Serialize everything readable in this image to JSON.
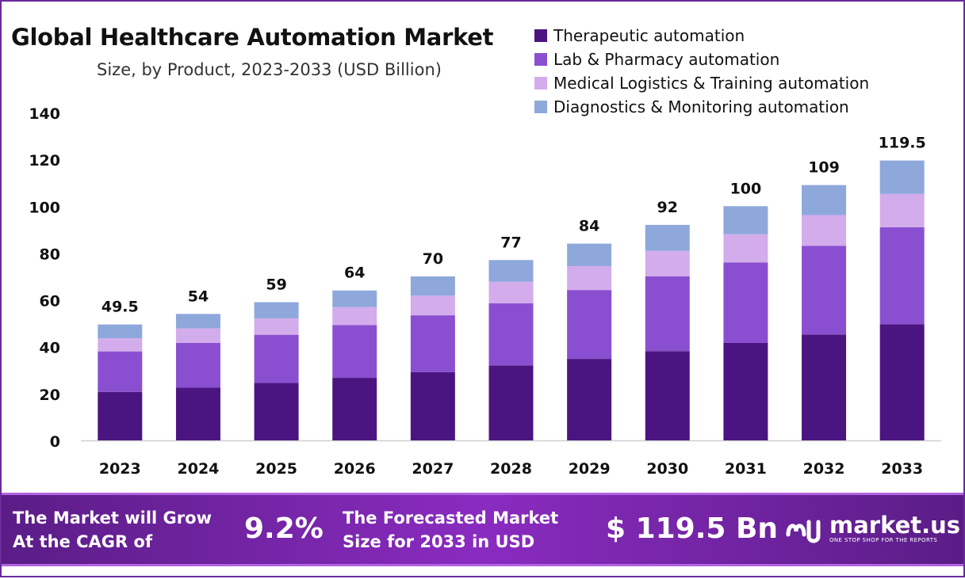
{
  "title": "Global Healthcare Automation Market",
  "subtitle": "Size, by Product, 2023-2033 (USD Billion)",
  "chart_data": {
    "type": "bar",
    "stacked": true,
    "categories": [
      "2023",
      "2024",
      "2025",
      "2026",
      "2027",
      "2028",
      "2029",
      "2030",
      "2031",
      "2032",
      "2033"
    ],
    "series": [
      {
        "name": "Therapeutic automation",
        "color": "#4a1580",
        "values": [
          20.7,
          22.5,
          24.5,
          26.7,
          29.1,
          32.0,
          34.8,
          38.1,
          41.6,
          45.2,
          49.6
        ]
      },
      {
        "name": "Lab & Pharmacy automation",
        "color": "#8a4fd0",
        "values": [
          17.3,
          19.1,
          20.6,
          22.5,
          24.3,
          26.5,
          29.4,
          31.9,
          34.4,
          37.9,
          41.4
        ]
      },
      {
        "name": "Medical Logistics & Training automation",
        "color": "#d3acec",
        "values": [
          5.6,
          6.2,
          7.0,
          7.7,
          8.4,
          9.2,
          10.2,
          10.9,
          12.0,
          13.1,
          14.2
        ]
      },
      {
        "name": "Diagnostics & Monitoring automation",
        "color": "#8fa8db",
        "values": [
          5.9,
          6.2,
          6.9,
          7.1,
          8.2,
          9.3,
          9.6,
          11.1,
          12.0,
          12.8,
          14.3
        ]
      }
    ],
    "totals": [
      "49.5",
      "54",
      "59",
      "64",
      "70",
      "77",
      "84",
      "92",
      "100",
      "109",
      "119.5"
    ],
    "ylim": [
      0,
      140
    ],
    "yticks": [
      0,
      20,
      40,
      60,
      80,
      100,
      120,
      140
    ],
    "grid": false,
    "legend": "top-right"
  },
  "banner": {
    "cagr_text_line1": "The Market will Grow",
    "cagr_text_line2": "At the CAGR of",
    "cagr_value": "9.2%",
    "forecast_text_line1": "The Forecasted Market",
    "forecast_text_line2": "Size for 2033 in USD",
    "forecast_value": "$ 119.5 Bn",
    "brand_name": "market.us",
    "brand_tagline": "ONE STOP SHOP FOR THE REPORTS"
  }
}
